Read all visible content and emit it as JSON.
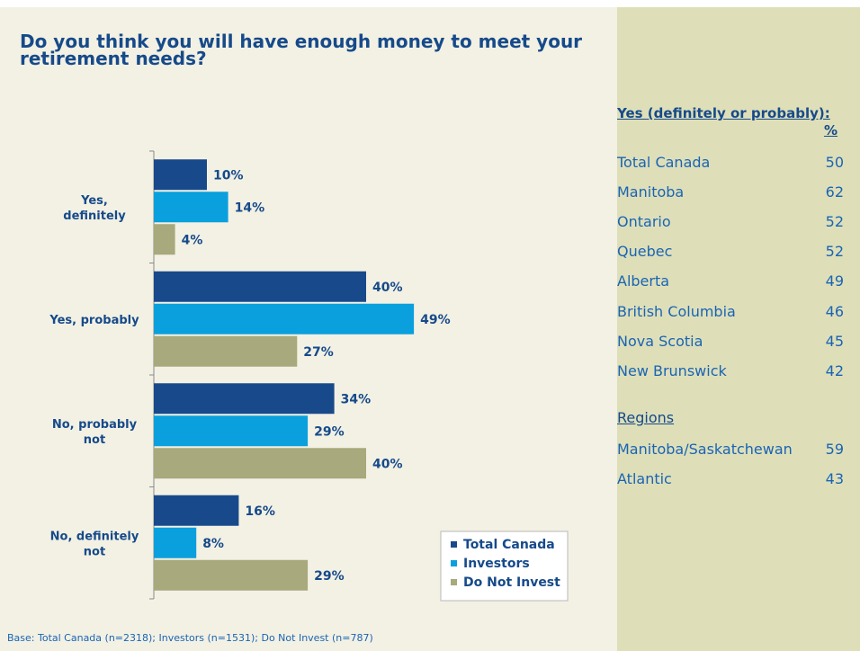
{
  "title": "Do you think you will have enough money to meet your retirement needs?",
  "footnote": "Base: Total Canada (n=2318); Investors (n=1531); Do Not Invest (n=787)",
  "colors": {
    "total_canada": "#184a8b",
    "investors": "#0aa0dd",
    "do_not_invest": "#a8a97c",
    "text": "#164a8a"
  },
  "chart_data": {
    "type": "bar",
    "orientation": "horizontal",
    "categories": [
      "Yes, definitely",
      "Yes, probably",
      "No, probably not",
      "No, definitely not"
    ],
    "series": [
      {
        "name": "Total Canada",
        "values": [
          10,
          40,
          34,
          16
        ]
      },
      {
        "name": "Investors",
        "values": [
          14,
          49,
          29,
          8
        ]
      },
      {
        "name": "Do Not Invest",
        "values": [
          4,
          27,
          40,
          29
        ]
      }
    ],
    "value_suffix": "%",
    "legend_position": "bottom-right",
    "grid": false
  },
  "sidebar": {
    "title": "Yes (definitely or probably):",
    "column_header": "%",
    "rows": [
      {
        "label": "Total Canada",
        "value": "50"
      },
      {
        "label": "Manitoba",
        "value": "62"
      },
      {
        "label": "Ontario",
        "value": "52"
      },
      {
        "label": "Quebec",
        "value": "52"
      },
      {
        "label": "Alberta",
        "value": "49"
      },
      {
        "label": "British Columbia",
        "value": "46"
      },
      {
        "label": "Nova Scotia",
        "value": "45"
      },
      {
        "label": "New Brunswick",
        "value": "42"
      }
    ],
    "regions_heading": "Regions",
    "regions": [
      {
        "label": "Manitoba/Saskatchewan",
        "value": "59"
      },
      {
        "label": "Atlantic",
        "value": "43"
      }
    ]
  }
}
